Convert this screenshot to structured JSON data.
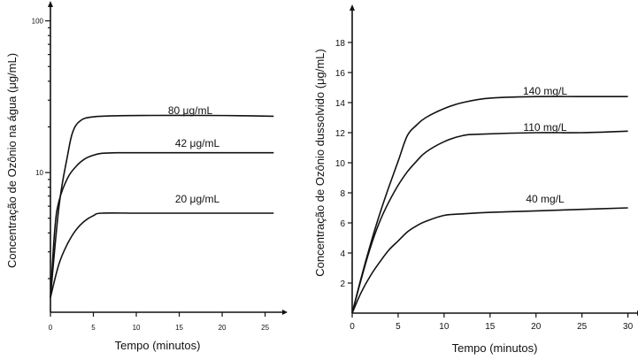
{
  "chart_data": [
    {
      "type": "line",
      "xlabel": "Tempo (minutos)",
      "ylabel": "Concentração de Ozônio na água (μg/mL)",
      "yscale": "log",
      "xlim": [
        0,
        27
      ],
      "ylim": [
        1.2,
        120
      ],
      "x_ticks": [
        0,
        5,
        10,
        15,
        20,
        25
      ],
      "y_tick_labels": [
        "10",
        "100"
      ],
      "y_ticks": [
        10,
        100
      ],
      "grid": false,
      "series": [
        {
          "name": "80 μg/mL",
          "x": [
            0,
            1,
            2,
            2.6,
            3.5,
            5,
            8,
            12,
            18,
            22,
            26
          ],
          "y": [
            1.5,
            6,
            13,
            18.5,
            22,
            23.3,
            23.7,
            23.8,
            23.8,
            23.7,
            23.5
          ]
        },
        {
          "name": "42 μg/mL",
          "x": [
            0,
            0.5,
            1,
            2,
            3,
            4,
            5,
            6,
            8,
            12,
            20,
            26
          ],
          "y": [
            1.5,
            4.2,
            6.5,
            9.2,
            11,
            12.3,
            13,
            13.4,
            13.5,
            13.5,
            13.5,
            13.5
          ]
        },
        {
          "name": "20 μg/mL",
          "x": [
            0,
            1,
            2,
            3,
            4,
            5,
            6,
            10,
            15,
            20,
            26
          ],
          "y": [
            1.5,
            2.5,
            3.4,
            4.2,
            4.8,
            5.2,
            5.4,
            5.4,
            5.4,
            5.4,
            5.4
          ]
        }
      ]
    },
    {
      "type": "line",
      "xlabel": "Tempo (minutos)",
      "ylabel": "Concentração de Ozônio dussolvido (μg/mL)",
      "xlim": [
        0,
        31
      ],
      "ylim": [
        0,
        20
      ],
      "x_ticks": [
        0,
        5,
        10,
        15,
        20,
        25,
        30
      ],
      "y_ticks": [
        2,
        4,
        6,
        8,
        10,
        12,
        14,
        16,
        18
      ],
      "grid": false,
      "series": [
        {
          "name": "140 mg/L",
          "x": [
            0,
            1,
            2,
            3,
            4,
            5,
            6,
            7,
            8,
            10,
            12,
            15,
            20,
            25,
            30
          ],
          "y": [
            0,
            2.4,
            4.6,
            6.6,
            8.4,
            10.1,
            11.8,
            12.5,
            13,
            13.6,
            14,
            14.3,
            14.4,
            14.4,
            14.4
          ]
        },
        {
          "name": "110 mg/L",
          "x": [
            0,
            1,
            2,
            3,
            4,
            5,
            6,
            7,
            8,
            10,
            12,
            14,
            20,
            25,
            30
          ],
          "y": [
            0,
            2.3,
            4.4,
            6.1,
            7.4,
            8.5,
            9.4,
            10.1,
            10.7,
            11.4,
            11.8,
            11.9,
            12,
            12,
            12.1
          ]
        },
        {
          "name": "40 mg/L",
          "x": [
            0,
            1,
            2,
            3,
            4,
            5,
            6,
            7,
            8,
            10,
            12,
            15,
            20,
            25,
            30
          ],
          "y": [
            0,
            1.4,
            2.5,
            3.4,
            4.2,
            4.8,
            5.4,
            5.8,
            6.1,
            6.5,
            6.6,
            6.7,
            6.8,
            6.9,
            7
          ]
        }
      ]
    }
  ]
}
